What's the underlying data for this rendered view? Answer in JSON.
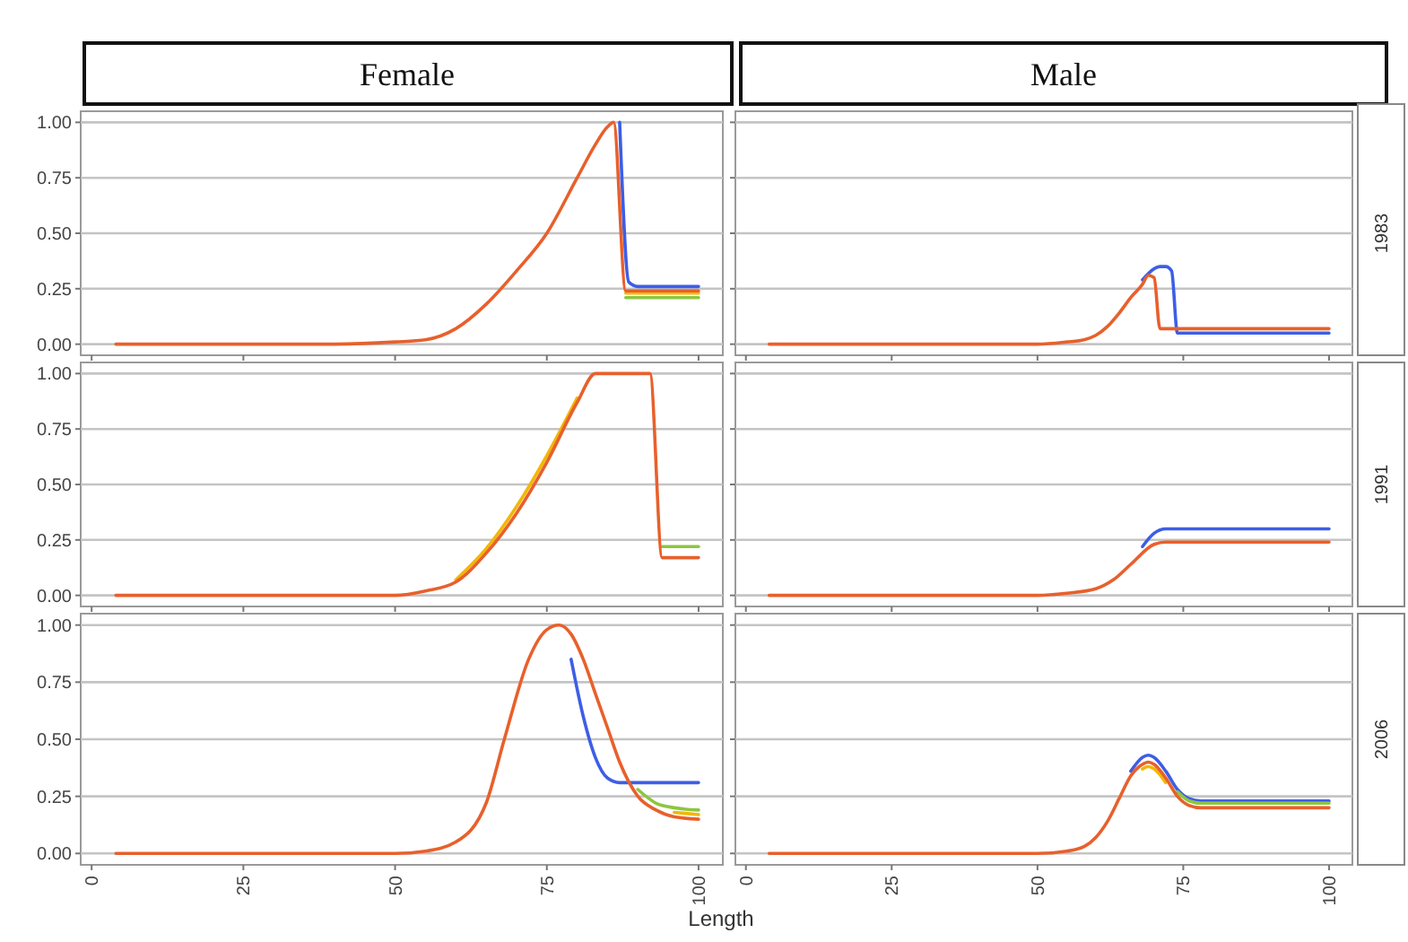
{
  "chart_data": [
    {
      "type": "line",
      "title": "Female",
      "xlim": [
        -1.8,
        104
      ],
      "ylim": [
        -0.05,
        1.05
      ],
      "xticks": [
        0,
        25,
        50,
        75,
        100
      ],
      "yticks": [
        {
          "value": 0,
          "label": "0.00"
        },
        {
          "value": 0.25,
          "label": "0.25"
        },
        {
          "value": 0.5,
          "label": "0.50"
        },
        {
          "value": 0.75,
          "label": "0.75"
        },
        {
          "value": 1,
          "label": "1.00"
        }
      ],
      "grid": "y",
      "tick_labels": "y",
      "series": [
        {
          "color": "#3d5ee6",
          "x": [
            87,
            88.5,
            90,
            95,
            100
          ],
          "values": [
            1,
            0.28,
            0.26,
            0.26,
            0.26
          ]
        },
        {
          "color": "#8cc63f",
          "x": [
            88,
            90,
            95,
            100
          ],
          "values": [
            0.21,
            0.21,
            0.21,
            0.21
          ]
        },
        {
          "color": "#f2b705",
          "x": [
            88,
            90,
            95,
            100
          ],
          "values": [
            0.23,
            0.23,
            0.23,
            0.23
          ]
        },
        {
          "color": "#e8602c",
          "x": [
            4,
            40,
            50,
            55,
            60,
            65,
            70,
            75,
            80,
            83,
            85,
            86,
            88,
            90,
            95,
            100
          ],
          "values": [
            0,
            0,
            0.01,
            0.02,
            0.07,
            0.18,
            0.33,
            0.5,
            0.75,
            0.9,
            0.98,
            1,
            0.24,
            0.24,
            0.24,
            0.24
          ]
        }
      ]
    },
    {
      "type": "line",
      "title": "Male",
      "y2label": "1983",
      "xlim": [
        -1.8,
        104
      ],
      "ylim": [
        -0.05,
        1.05
      ],
      "xticks": [
        0,
        25,
        50,
        75,
        100
      ],
      "yticks": [
        0,
        0.25,
        0.5,
        0.75,
        1
      ],
      "grid": "y",
      "tick_labels": false,
      "series": [
        {
          "color": "#3d5ee6",
          "x": [
            68,
            70,
            71,
            72,
            73,
            74,
            100
          ],
          "values": [
            0.29,
            0.34,
            0.35,
            0.35,
            0.33,
            0.05,
            0.05
          ]
        },
        {
          "color": "#e8602c",
          "x": [
            4,
            50,
            55,
            58,
            60,
            62,
            64,
            66,
            68,
            69,
            70,
            71,
            100
          ],
          "values": [
            0,
            0,
            0.01,
            0.02,
            0.04,
            0.08,
            0.14,
            0.21,
            0.27,
            0.31,
            0.3,
            0.07,
            0.07
          ]
        }
      ]
    },
    {
      "type": "line",
      "xlim": [
        -1.8,
        104
      ],
      "ylim": [
        -0.05,
        1.05
      ],
      "xticks": [
        0,
        25,
        50,
        75,
        100
      ],
      "yticks": [
        {
          "value": 0,
          "label": "0.00"
        },
        {
          "value": 0.25,
          "label": "0.25"
        },
        {
          "value": 0.5,
          "label": "0.50"
        },
        {
          "value": 0.75,
          "label": "0.75"
        },
        {
          "value": 1,
          "label": "1.00"
        }
      ],
      "grid": "y",
      "tick_labels": "y",
      "series": [
        {
          "color": "#8cc63f",
          "x": [
            94,
            100
          ],
          "values": [
            0.22,
            0.22
          ]
        },
        {
          "color": "#f2b705",
          "x": [
            60,
            65,
            70,
            75,
            80
          ],
          "values": [
            0.07,
            0.21,
            0.4,
            0.63,
            0.89
          ]
        },
        {
          "color": "#e8602c",
          "x": [
            4,
            45,
            50,
            55,
            60,
            65,
            70,
            75,
            80,
            83,
            92,
            94,
            100
          ],
          "values": [
            0,
            0,
            0,
            0.02,
            0.06,
            0.19,
            0.37,
            0.6,
            0.87,
            1,
            1,
            0.17,
            0.17
          ]
        }
      ]
    },
    {
      "type": "line",
      "y2label": "1991",
      "xlim": [
        -1.8,
        104
      ],
      "ylim": [
        -0.05,
        1.05
      ],
      "xticks": [
        0,
        25,
        50,
        75,
        100
      ],
      "yticks": [
        0,
        0.25,
        0.5,
        0.75,
        1
      ],
      "grid": "y",
      "tick_labels": false,
      "series": [
        {
          "color": "#3d5ee6",
          "x": [
            68,
            70,
            72,
            100
          ],
          "values": [
            0.22,
            0.28,
            0.3,
            0.3
          ]
        },
        {
          "color": "#e8602c",
          "x": [
            4,
            50,
            55,
            60,
            63,
            66,
            70,
            72,
            100
          ],
          "values": [
            0,
            0,
            0.01,
            0.03,
            0.07,
            0.14,
            0.23,
            0.24,
            0.24
          ]
        }
      ]
    },
    {
      "type": "line",
      "xlabel": "Length",
      "xlim": [
        -1.8,
        104
      ],
      "ylim": [
        -0.05,
        1.05
      ],
      "xticks": [
        0,
        25,
        50,
        75,
        100
      ],
      "yticks": [
        {
          "value": 0,
          "label": "0.00"
        },
        {
          "value": 0.25,
          "label": "0.25"
        },
        {
          "value": 0.5,
          "label": "0.50"
        },
        {
          "value": 0.75,
          "label": "0.75"
        },
        {
          "value": 1,
          "label": "1.00"
        }
      ],
      "grid": "y",
      "series": [
        {
          "color": "#3d5ee6",
          "x": [
            79,
            81,
            83,
            85,
            87,
            90,
            93,
            96,
            100
          ],
          "values": [
            0.85,
            0.6,
            0.42,
            0.33,
            0.31,
            0.31,
            0.31,
            0.31,
            0.31
          ]
        },
        {
          "color": "#8cc63f",
          "x": [
            90,
            93,
            96,
            100
          ],
          "values": [
            0.28,
            0.22,
            0.2,
            0.19
          ]
        },
        {
          "color": "#f2b705",
          "x": [
            96,
            100
          ],
          "values": [
            0.18,
            0.17
          ]
        },
        {
          "color": "#e8602c",
          "x": [
            4,
            50,
            55,
            60,
            65,
            68,
            72,
            75,
            77,
            79,
            81,
            83,
            85,
            87,
            90,
            93,
            96,
            100
          ],
          "values": [
            0,
            0,
            0.01,
            0.05,
            0.22,
            0.5,
            0.85,
            0.98,
            1,
            0.96,
            0.85,
            0.7,
            0.55,
            0.4,
            0.25,
            0.19,
            0.16,
            0.15
          ]
        }
      ]
    },
    {
      "type": "line",
      "y2label": "2006",
      "xlim": [
        -1.8,
        104
      ],
      "ylim": [
        -0.05,
        1.05
      ],
      "xticks": [
        0,
        25,
        50,
        75,
        100
      ],
      "yticks": [
        0,
        0.25,
        0.5,
        0.75,
        1
      ],
      "grid": "y",
      "tick_labels": "x",
      "series": [
        {
          "color": "#3d5ee6",
          "x": [
            66,
            68,
            69,
            70,
            72,
            74,
            76,
            78,
            100
          ],
          "values": [
            0.36,
            0.42,
            0.43,
            0.42,
            0.36,
            0.28,
            0.24,
            0.23,
            0.23
          ]
        },
        {
          "color": "#8cc63f",
          "x": [
            74,
            76,
            78,
            100
          ],
          "values": [
            0.27,
            0.23,
            0.22,
            0.22
          ]
        },
        {
          "color": "#f2b705",
          "x": [
            68,
            69,
            70,
            72
          ],
          "values": [
            0.37,
            0.38,
            0.37,
            0.31
          ]
        },
        {
          "color": "#e8602c",
          "x": [
            4,
            50,
            55,
            58,
            60,
            62,
            64,
            66,
            68,
            69,
            70,
            72,
            74,
            76,
            78,
            100
          ],
          "values": [
            0,
            0,
            0.01,
            0.03,
            0.07,
            0.14,
            0.24,
            0.34,
            0.39,
            0.4,
            0.39,
            0.33,
            0.25,
            0.21,
            0.2,
            0.2
          ]
        }
      ]
    }
  ]
}
